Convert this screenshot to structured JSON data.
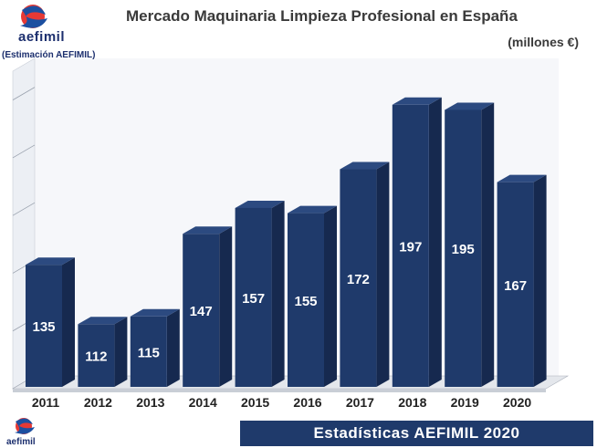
{
  "branding": {
    "logo_text": "aefimil",
    "estimation_note": "(Estimación AEFIMIL)",
    "footer_label": "Estadísticas AEFIMIL 2020"
  },
  "chart_data": {
    "type": "bar",
    "title": "Mercado Maquinaria Limpieza Profesional en España",
    "subtitle": "(millones €)",
    "xlabel": "",
    "ylabel": "",
    "categories": [
      "2011",
      "2012",
      "2013",
      "2014",
      "2015",
      "2016",
      "2017",
      "2018",
      "2019",
      "2020"
    ],
    "values": [
      135,
      112,
      115,
      147,
      157,
      155,
      172,
      197,
      195,
      167
    ],
    "data_labels": [
      "135",
      "112",
      "115",
      "147",
      "157",
      "155",
      "172",
      "197",
      "195",
      "167"
    ],
    "ylim": [
      87,
      210
    ],
    "grid": true,
    "bar_color": "#1f3a6b",
    "bar_side_color": "#16294f",
    "bar_top_color": "#2c4a80"
  }
}
